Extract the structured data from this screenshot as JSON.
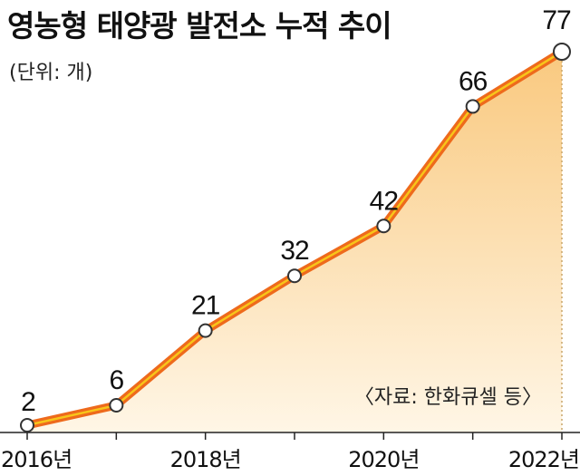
{
  "chart_data": {
    "type": "area",
    "title": "영농형 태양광 발전소 누적 추이",
    "unit_label": "(단위: 개)",
    "source": "〈자료: 한화큐셀 등〉",
    "x": [
      2016,
      2017,
      2018,
      2019,
      2020,
      2021,
      2022
    ],
    "values": [
      2,
      6,
      21,
      32,
      42,
      66,
      77
    ],
    "data_labels": [
      "2",
      "6",
      "21",
      "32",
      "42",
      "66",
      "77"
    ],
    "x_tick_labels": [
      {
        "x": 2016,
        "label": "2016년"
      },
      {
        "x": 2018,
        "label": "2018년"
      },
      {
        "x": 2020,
        "label": "2020년"
      },
      {
        "x": 2022,
        "label": "2022년"
      }
    ],
    "ylim": [
      0,
      80
    ],
    "grid": false,
    "colors": {
      "line": "#ee6a1c",
      "line_highlight": "#f7c51a",
      "area_top": "#f9c97f",
      "area_bottom": "#fff6e6",
      "marker_fill": "#ffffff",
      "marker_stroke": "#333333"
    }
  }
}
